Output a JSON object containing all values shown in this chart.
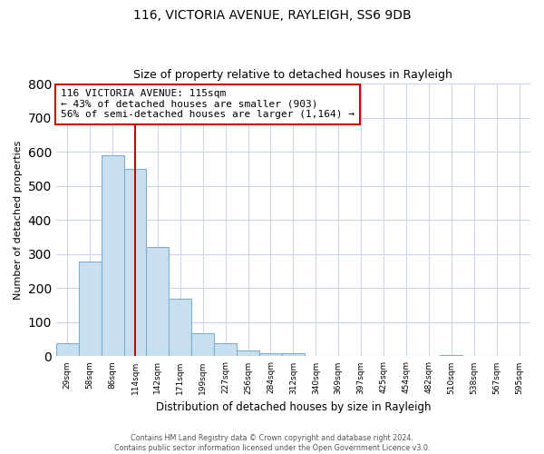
{
  "title": "116, VICTORIA AVENUE, RAYLEIGH, SS6 9DB",
  "subtitle": "Size of property relative to detached houses in Rayleigh",
  "xlabel": "Distribution of detached houses by size in Rayleigh",
  "ylabel": "Number of detached properties",
  "bin_labels": [
    "29sqm",
    "58sqm",
    "86sqm",
    "114sqm",
    "142sqm",
    "171sqm",
    "199sqm",
    "227sqm",
    "256sqm",
    "284sqm",
    "312sqm",
    "340sqm",
    "369sqm",
    "397sqm",
    "425sqm",
    "454sqm",
    "482sqm",
    "510sqm",
    "538sqm",
    "567sqm",
    "595sqm"
  ],
  "bar_heights": [
    38,
    278,
    591,
    549,
    320,
    170,
    67,
    38,
    18,
    10,
    8,
    0,
    0,
    0,
    0,
    0,
    0,
    5,
    0,
    0,
    0
  ],
  "bar_color": "#c8dff0",
  "bar_edge_color": "#7bafd4",
  "vline_x_index": 3.5,
  "vline_color": "#cc0000",
  "annotation_line1": "116 VICTORIA AVENUE: 115sqm",
  "annotation_line2": "← 43% of detached houses are smaller (903)",
  "annotation_line3": "56% of semi-detached houses are larger (1,164) →",
  "annotation_box_color": "#ffffff",
  "annotation_box_edge": "#cc0000",
  "ylim": [
    0,
    800
  ],
  "yticks": [
    0,
    100,
    200,
    300,
    400,
    500,
    600,
    700,
    800
  ],
  "footer_line1": "Contains HM Land Registry data © Crown copyright and database right 2024.",
  "footer_line2": "Contains public sector information licensed under the Open Government Licence v3.0.",
  "background_color": "#ffffff",
  "grid_color": "#c8d4e8"
}
